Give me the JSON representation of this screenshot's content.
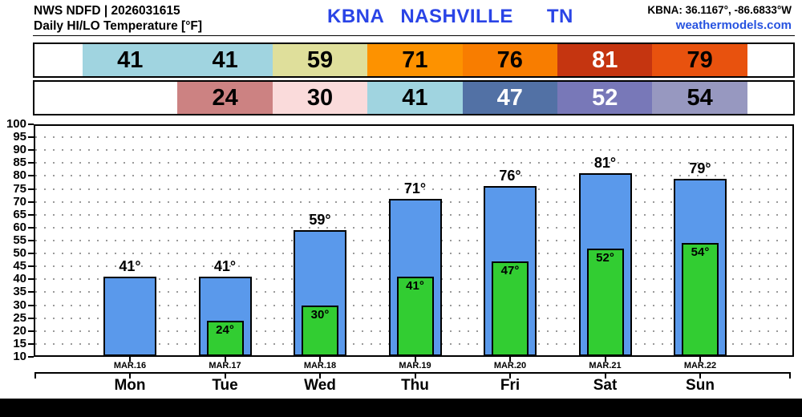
{
  "header": {
    "source": "NWS NDFD | 2026031615",
    "product": "Daily HI/LO Temperature [°F]",
    "station": {
      "code": "KBNA",
      "name": "NASHVILLE",
      "state": "TN"
    },
    "coords": "KBNA: 36.1167°, -86.6833°W",
    "site": "weathermodels.com"
  },
  "colors": {
    "station_title": "#2a44e6",
    "site_link": "#2753e0",
    "hi_bar": "#5a99eb",
    "lo_bar": "#32cd32",
    "bar_border": "#000000",
    "grid_dots": "#9a9a9a",
    "footer_band": "#000000"
  },
  "strips": {
    "hi": [
      {
        "value": "41",
        "bg": "#a0d4e0",
        "fg": "#000000"
      },
      {
        "value": "41",
        "bg": "#a0d4e0",
        "fg": "#000000"
      },
      {
        "value": "59",
        "bg": "#dfdf9b",
        "fg": "#000000"
      },
      {
        "value": "71",
        "bg": "#fd9200",
        "fg": "#000000"
      },
      {
        "value": "76",
        "bg": "#f87d00",
        "fg": "#000000"
      },
      {
        "value": "81",
        "bg": "#c53510",
        "fg": "#ffffff"
      },
      {
        "value": "79",
        "bg": "#e8520e",
        "fg": "#000000"
      }
    ],
    "lo": [
      null,
      {
        "value": "24",
        "bg": "#cc8282",
        "fg": "#000000"
      },
      {
        "value": "30",
        "bg": "#fadbdb",
        "fg": "#000000"
      },
      {
        "value": "41",
        "bg": "#a0d4e0",
        "fg": "#000000"
      },
      {
        "value": "47",
        "bg": "#5271a5",
        "fg": "#ffffff"
      },
      {
        "value": "52",
        "bg": "#7878b8",
        "fg": "#ffffff"
      },
      {
        "value": "54",
        "bg": "#9798c0",
        "fg": "#000000"
      }
    ]
  },
  "chart_data": {
    "type": "bar",
    "title": "NWS NDFD Daily HI/LO Temperature [°F] — KBNA Nashville TN",
    "categories": [
      "Mon",
      "Tue",
      "Wed",
      "Thu",
      "Fri",
      "Sat",
      "Sun"
    ],
    "dates": [
      "MAR.16",
      "MAR.17",
      "MAR.18",
      "MAR.19",
      "MAR.20",
      "MAR.21",
      "MAR.22"
    ],
    "series": [
      {
        "name": "High",
        "values": [
          41,
          41,
          59,
          71,
          76,
          81,
          79
        ]
      },
      {
        "name": "Low",
        "values": [
          null,
          24,
          30,
          41,
          47,
          52,
          54
        ]
      }
    ],
    "ylim": [
      10,
      100
    ],
    "ytick_step": 5,
    "grid": "dotted-horizontal",
    "legend": "none",
    "unit": "°F"
  }
}
